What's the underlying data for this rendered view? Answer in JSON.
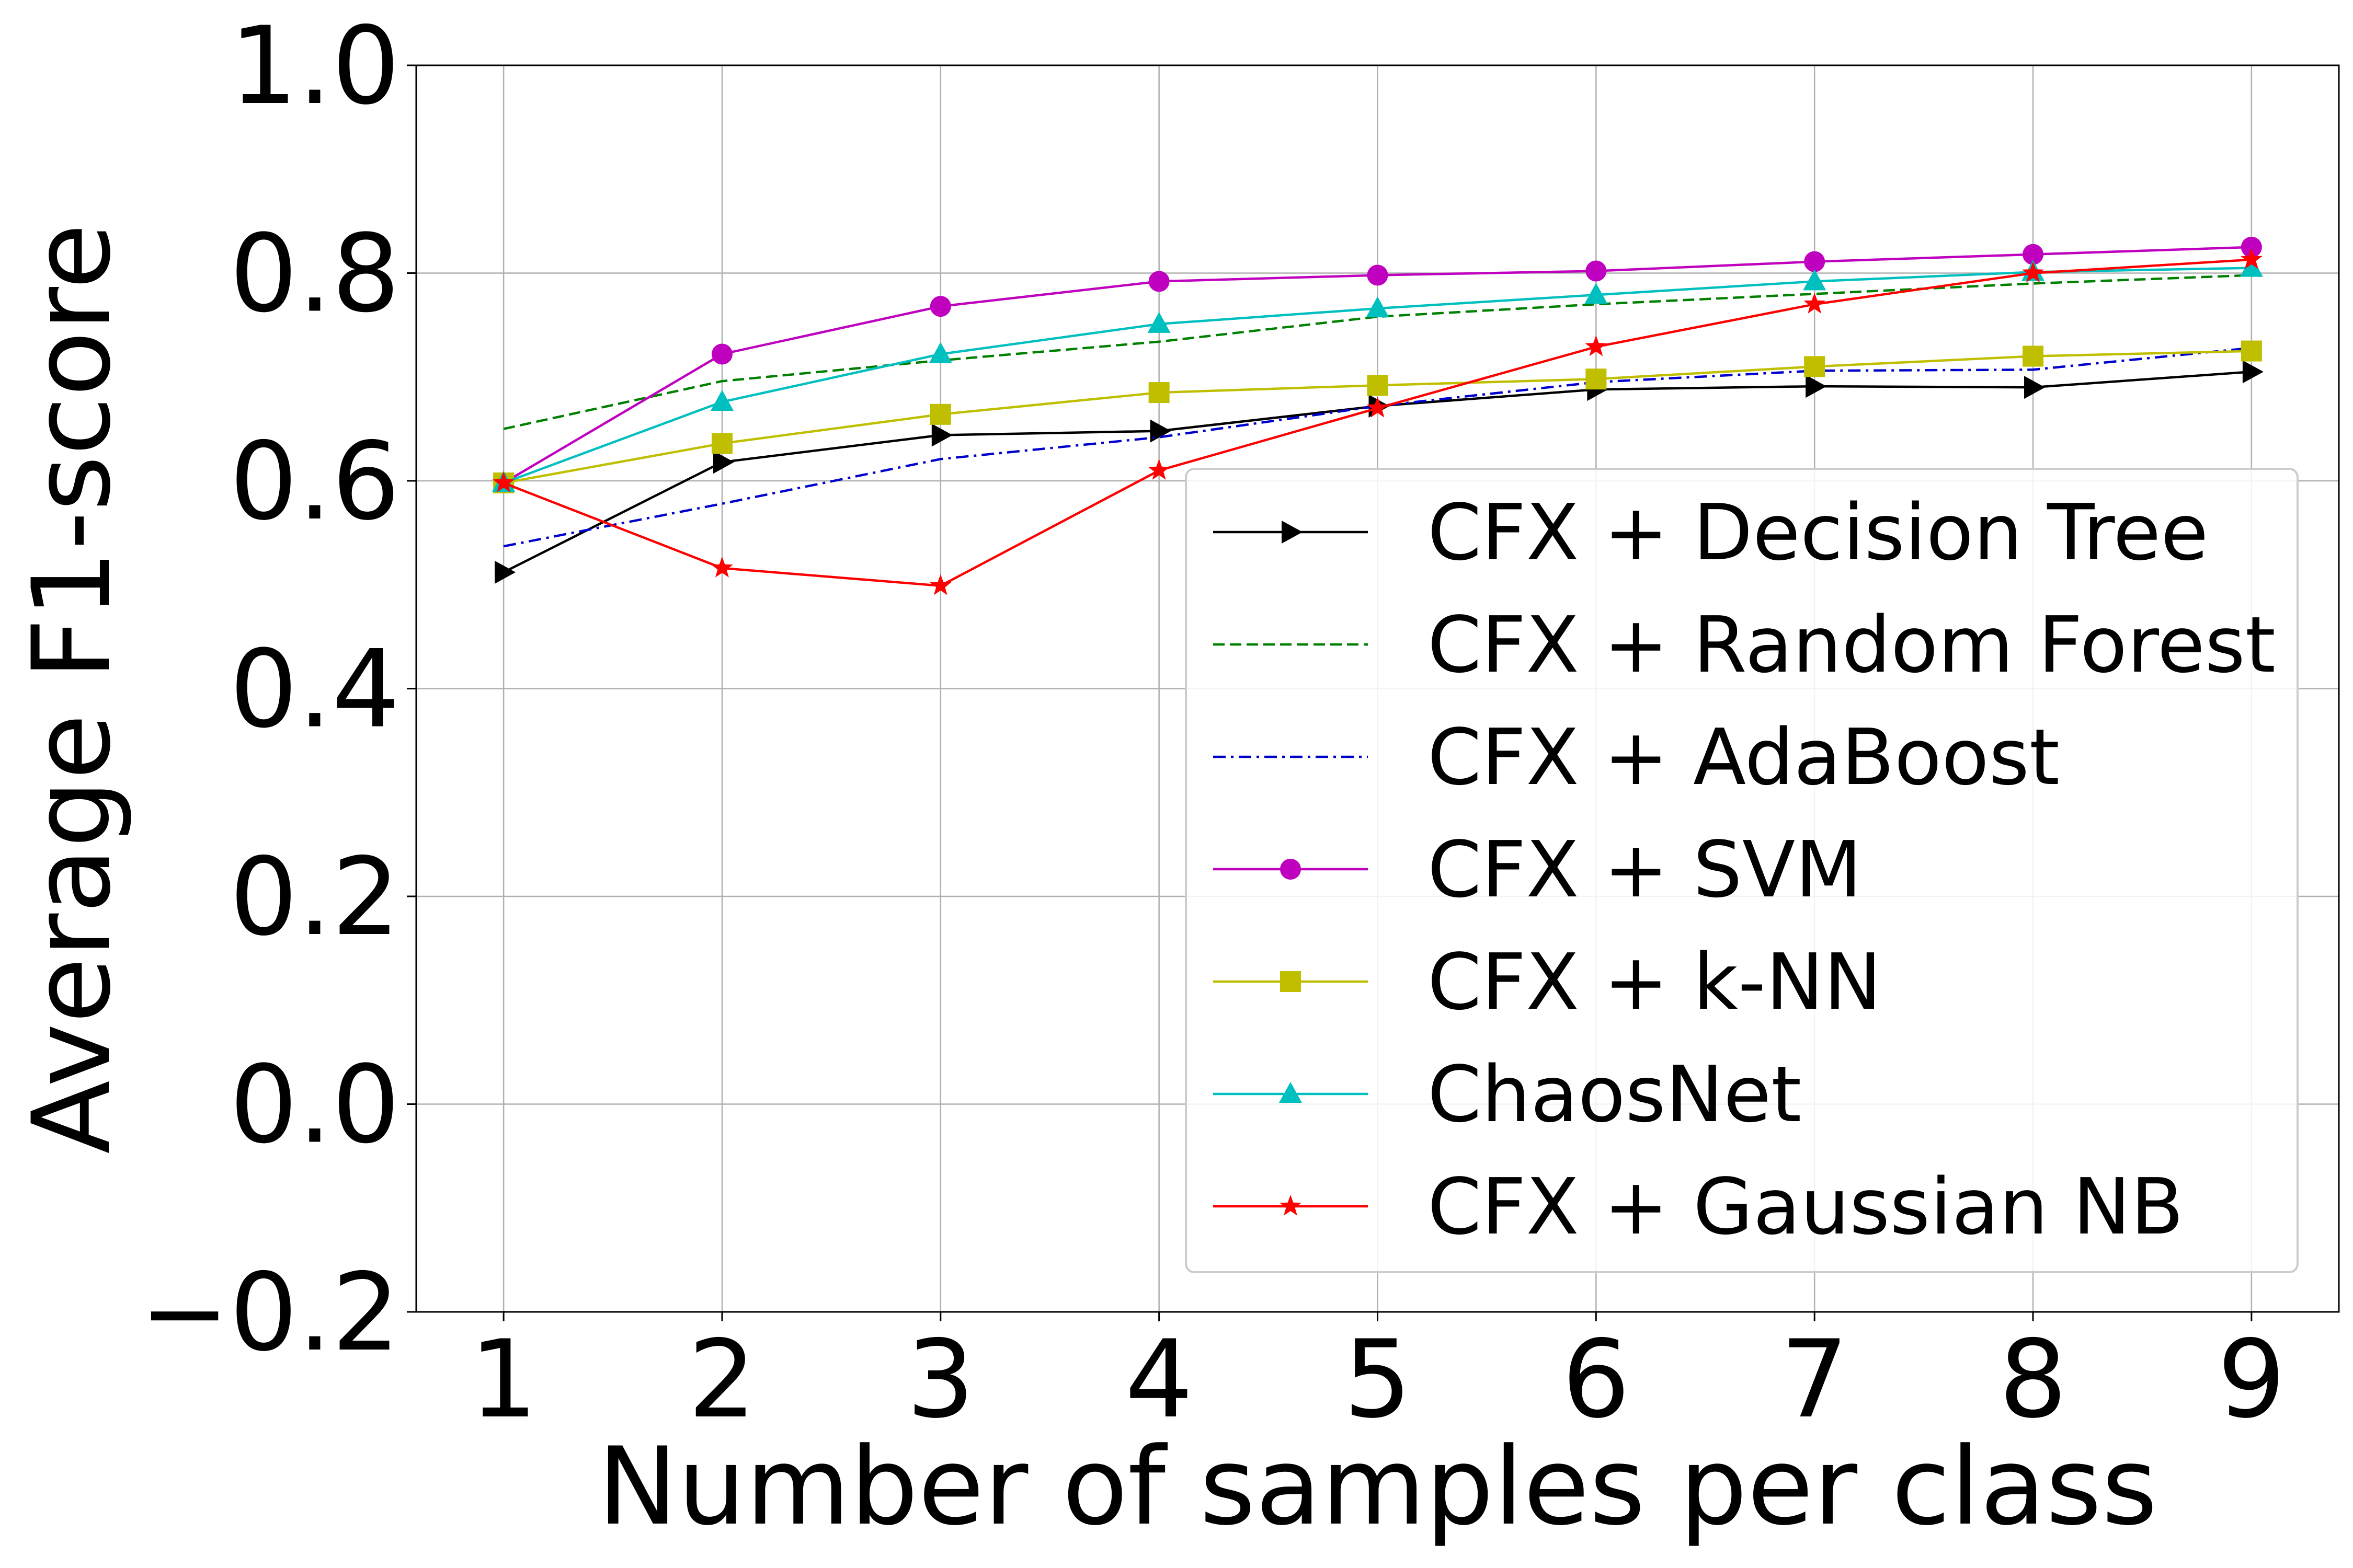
{
  "chart_data": {
    "type": "line",
    "title": "",
    "xlabel": "Number of samples per class",
    "ylabel": "Average F1-score",
    "x": [
      1,
      2,
      3,
      4,
      5,
      6,
      7,
      8,
      9
    ],
    "xlim": [
      0.6,
      9.4
    ],
    "ylim": [
      -0.2,
      1.0
    ],
    "xticks": [
      "1",
      "2",
      "3",
      "4",
      "5",
      "6",
      "7",
      "8",
      "9"
    ],
    "yticks": [
      "−0.2",
      "0.0",
      "0.2",
      "0.4",
      "0.6",
      "0.8",
      "1.0"
    ],
    "ytick_values": [
      -0.2,
      0.0,
      0.2,
      0.4,
      0.6,
      0.8,
      1.0
    ],
    "grid": true,
    "legend_position": "lower-right",
    "series": [
      {
        "name": "CFX + Decision Tree",
        "color": "#000000",
        "dash": "solid",
        "marker": "triangle-right",
        "values": [
          0.512,
          0.618,
          0.644,
          0.648,
          0.672,
          0.688,
          0.691,
          0.69,
          0.705
        ]
      },
      {
        "name": "CFX + Random Forest",
        "color": "#008000",
        "dash": "dashed",
        "marker": "none",
        "values": [
          0.65,
          0.696,
          0.716,
          0.734,
          0.758,
          0.77,
          0.78,
          0.79,
          0.798
        ]
      },
      {
        "name": "CFX + AdaBoost",
        "color": "#0000cc",
        "dash": "dashdot",
        "marker": "none",
        "values": [
          0.537,
          0.578,
          0.621,
          0.642,
          0.672,
          0.695,
          0.706,
          0.707,
          0.728
        ]
      },
      {
        "name": "CFX + SVM",
        "color": "#bf00bf",
        "dash": "solid",
        "marker": "circle",
        "values": [
          0.598,
          0.722,
          0.768,
          0.792,
          0.798,
          0.802,
          0.811,
          0.818,
          0.825
        ]
      },
      {
        "name": "CFX + k-NN",
        "color": "#bfbf00",
        "dash": "solid",
        "marker": "square",
        "values": [
          0.598,
          0.636,
          0.664,
          0.685,
          0.692,
          0.698,
          0.71,
          0.72,
          0.725
        ]
      },
      {
        "name": "ChaosNet",
        "color": "#00bfbf",
        "dash": "solid",
        "marker": "triangle-up",
        "values": [
          0.598,
          0.676,
          0.722,
          0.751,
          0.766,
          0.779,
          0.792,
          0.801,
          0.805
        ]
      },
      {
        "name": "CFX + Gaussian NB",
        "color": "#ff0000",
        "dash": "solid",
        "marker": "star",
        "values": [
          0.598,
          0.516,
          0.499,
          0.61,
          0.67,
          0.729,
          0.77,
          0.8,
          0.813
        ]
      }
    ]
  }
}
